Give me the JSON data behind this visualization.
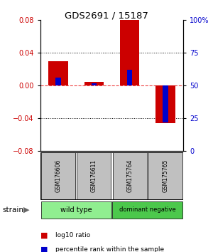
{
  "title": "GDS2691 / 15187",
  "samples": [
    "GSM176606",
    "GSM176611",
    "GSM175764",
    "GSM175765"
  ],
  "log10_ratios": [
    0.03,
    0.005,
    0.08,
    -0.046
  ],
  "percentile_ranks": [
    56,
    52,
    62,
    22
  ],
  "groups": [
    {
      "label": "wild type",
      "samples": [
        0,
        1
      ],
      "color": "#90EE90"
    },
    {
      "label": "dominant negative",
      "samples": [
        2,
        3
      ],
      "color": "#4CC84C"
    }
  ],
  "ylim": [
    -0.08,
    0.08
  ],
  "yticks_left": [
    -0.08,
    -0.04,
    0,
    0.04,
    0.08
  ],
  "yticks_right_vals": [
    0,
    25,
    50,
    75,
    100
  ],
  "yticks_right_labels": [
    "0",
    "25",
    "50",
    "75",
    "100%"
  ],
  "bar_color_red": "#CC0000",
  "bar_color_blue": "#0000CC",
  "zero_line_color": "#EE4444",
  "bg_color": "#FFFFFF",
  "label_log10": "log10 ratio",
  "label_percentile": "percentile rank within the sample",
  "bar_width": 0.55,
  "pct_bar_width": 0.15
}
